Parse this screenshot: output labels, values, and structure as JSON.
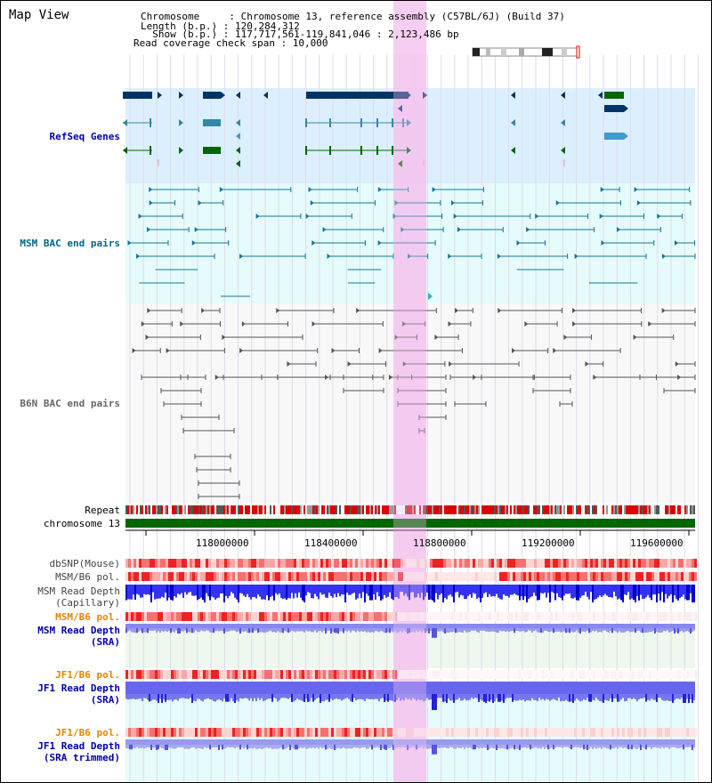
{
  "header": {
    "view_title": "Map View",
    "info_lines": [
      "Chromosome     : Chromosome 13, reference assembly (C57BL/6J) (Build 37)",
      "Length (b.p.) : 120,284,312",
      "  Show (b.p.) : 117,717,561-119,841,046 : 2,123,486 bp",
      "Read coverage check span : 10,000"
    ]
  },
  "track_labels": {
    "refseq": "RefSeq Genes",
    "msm_bac": "MSM BAC end pairs",
    "b6n_bac": "B6N BAC end pairs",
    "repeat": "Repeat",
    "chromosome": "chromosome 13",
    "dbsnp": "dbSNP(Mouse)",
    "msm_b6_pol_1": "MSM/B6 pol.",
    "msm_read_depth_cap": "MSM Read Depth\n(Capillary)",
    "msm_b6_pol_2": "MSM/B6 pol.",
    "msm_read_depth_sra": "MSM Read Depth\n(SRA)",
    "jf1_b6_pol_1": "JF1/B6 pol.",
    "jf1_read_depth_sra": "JF1 Read Depth\n(SRA)",
    "jf1_b6_pol_2": "JF1/B6 pol.",
    "jf1_read_depth_trimmed": "JF1 Read Depth\n(SRA trimmed)"
  },
  "axis": {
    "ticks": [
      "118000000",
      "118400000",
      "118800000",
      "119200000",
      "119600000"
    ]
  },
  "colors": {
    "refseq_label": "#0000aa",
    "msm_label": "#006688",
    "b6n_label": "#666666",
    "pol_orange": "#dd8800",
    "depth_blue": "#0000aa",
    "highlight": "#f4c6f0",
    "refseq_bg": "#dcefff",
    "bac_bg": "#e6fbfb",
    "b6n_bg": "#f8f8f8",
    "green_bg": "#eef8ee"
  }
}
